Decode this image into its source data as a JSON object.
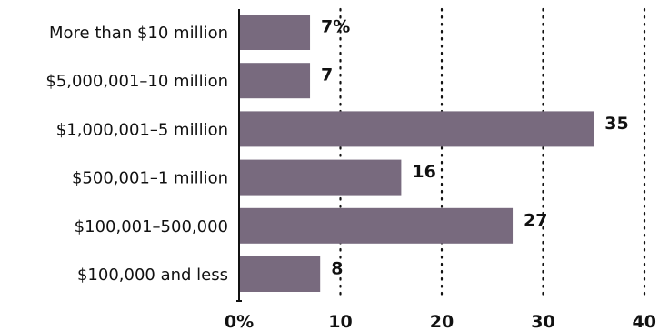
{
  "chart_data": {
    "type": "bar",
    "orientation": "horizontal",
    "categories": [
      "More than $10 million",
      "$5,000,001–10 million",
      "$1,000,001–5 million",
      "$500,001–1 million",
      "$100,001–500,000",
      "$100,000 and less"
    ],
    "values": [
      7,
      7,
      35,
      16,
      27,
      8
    ],
    "value_labels": [
      "7%",
      "7",
      "35",
      "16",
      "27",
      "8"
    ],
    "xlim": [
      0,
      40
    ],
    "xticks": [
      0,
      10,
      20,
      30,
      40
    ],
    "xtick_labels": [
      "0%",
      "10",
      "20",
      "30",
      "40"
    ],
    "title": "",
    "xlabel": "",
    "ylabel": "",
    "grid": "vertical dotted",
    "legend": "none",
    "colors": {
      "bar": "#786a7e",
      "text": "#111111",
      "axis": "#111111",
      "grid": "#111111"
    }
  }
}
